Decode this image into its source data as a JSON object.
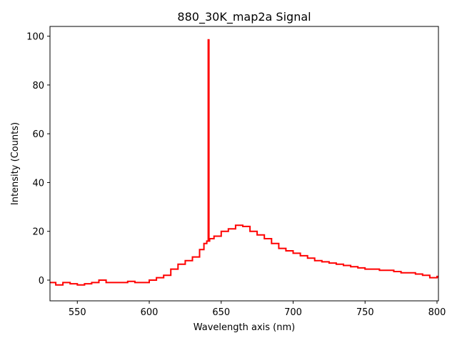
{
  "chart_data": {
    "type": "line",
    "title": "880_30K_map2a Signal",
    "xlabel": "Wavelength axis (nm)",
    "ylabel": "Intensity (Counts)",
    "xlim": [
      531,
      801
    ],
    "ylim": [
      -8.5,
      104
    ],
    "xticks": [
      550,
      600,
      650,
      700,
      750,
      800
    ],
    "yticks": [
      0,
      20,
      40,
      60,
      80,
      100
    ],
    "grid": false,
    "legend": "none",
    "line_color": "#ff0000",
    "step": true,
    "series": [
      {
        "x": [
          531,
          535,
          540,
          545,
          550,
          555,
          560,
          565,
          570,
          575,
          580,
          585,
          590,
          595,
          600,
          605,
          610,
          615,
          620,
          625,
          630,
          635,
          638,
          640,
          641,
          641.5,
          642,
          645,
          650,
          655,
          660,
          665,
          670,
          675,
          680,
          685,
          690,
          695,
          700,
          705,
          710,
          715,
          720,
          725,
          730,
          735,
          740,
          745,
          750,
          755,
          760,
          765,
          770,
          775,
          780,
          785,
          790,
          795,
          800,
          801
        ],
        "y": [
          -1,
          -2,
          -1,
          -1.5,
          -2,
          -1.5,
          -1,
          0,
          -1,
          -1,
          -1,
          -0.5,
          -1,
          -1,
          0,
          1,
          2,
          4.5,
          6.5,
          8,
          9.5,
          12.5,
          15,
          16,
          98.5,
          16,
          17,
          18,
          20,
          21,
          22.5,
          22,
          20,
          18.5,
          17,
          15,
          13,
          12,
          11,
          10,
          9,
          8,
          7.5,
          7,
          6.5,
          6,
          5.5,
          5,
          4.5,
          4.5,
          4,
          4,
          3.5,
          3,
          3,
          2.5,
          2,
          1,
          1.5,
          1
        ]
      }
    ]
  }
}
